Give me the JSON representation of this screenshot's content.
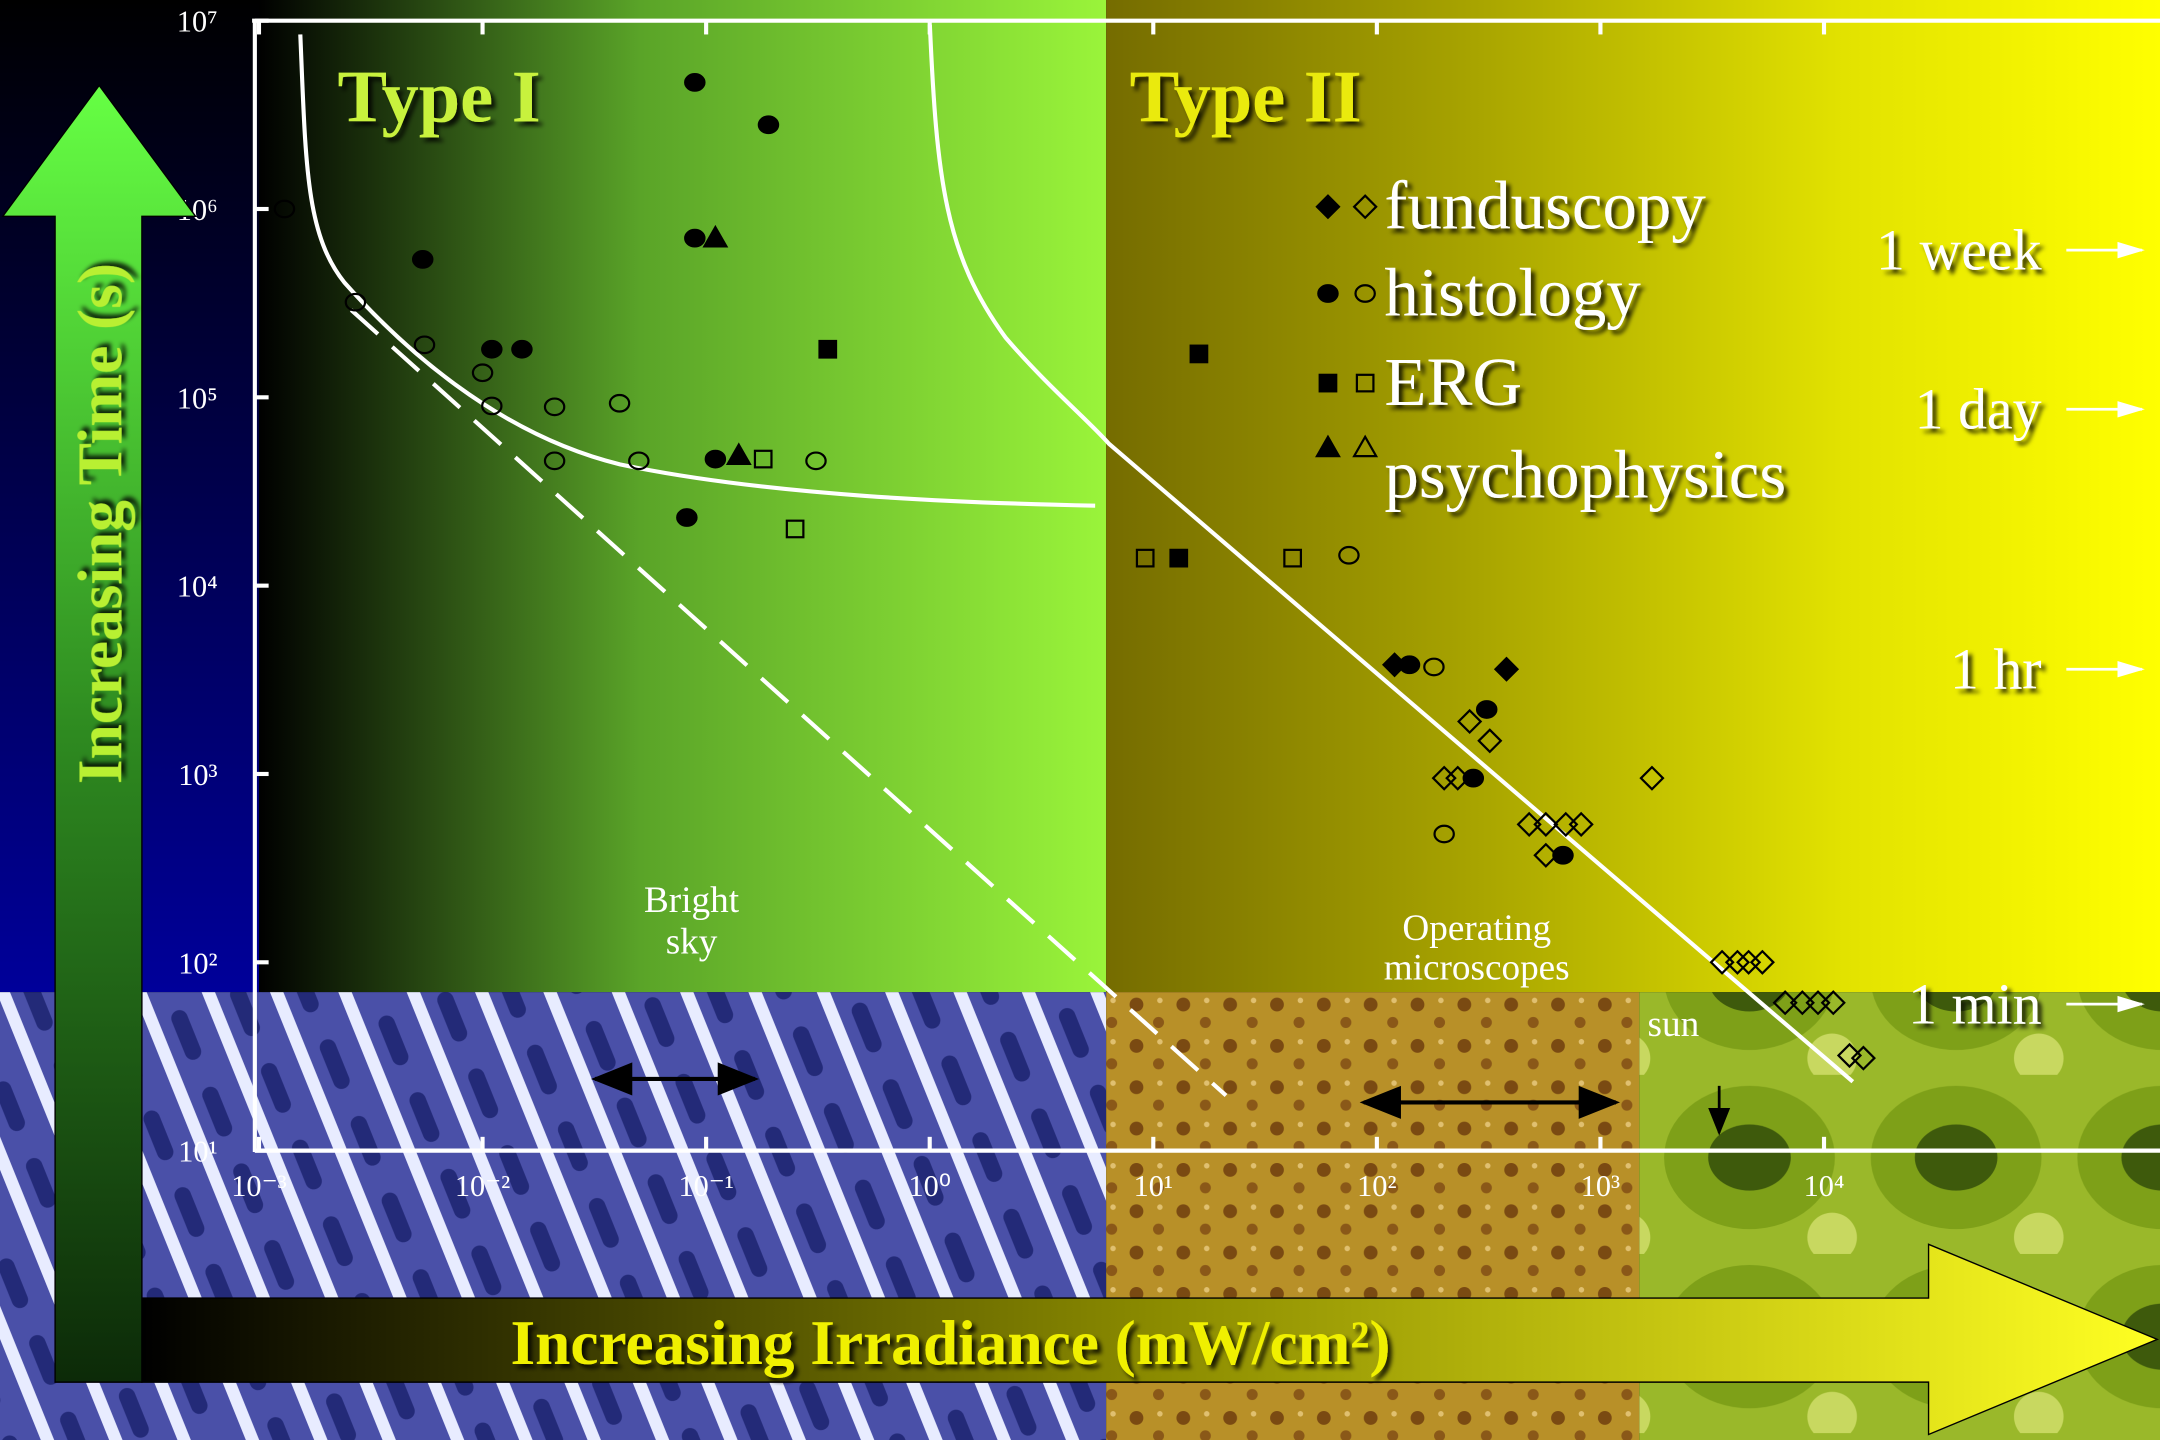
{
  "chart_data": {
    "type": "scatter",
    "xlabel": "Increasing Irradiance (mW/cm²)",
    "ylabel": "Increasing Time (s)",
    "xscale": "log",
    "yscale": "log",
    "xlim": [
      0.001,
      100000
    ],
    "ylim": [
      10,
      10000000
    ],
    "xticks": [
      {
        "value": 0.001,
        "label": "10⁻³"
      },
      {
        "value": 0.01,
        "label": "10⁻²"
      },
      {
        "value": 0.1,
        "label": "10⁻¹"
      },
      {
        "value": 1,
        "label": "10⁰"
      },
      {
        "value": 10,
        "label": "10¹"
      },
      {
        "value": 100,
        "label": "10²"
      },
      {
        "value": 1000,
        "label": "10³"
      },
      {
        "value": 10000,
        "label": "10⁴"
      }
    ],
    "yticks": [
      {
        "value": 10,
        "label": "10¹"
      },
      {
        "value": 100,
        "label": "10²"
      },
      {
        "value": 1000,
        "label": "10³"
      },
      {
        "value": 10000,
        "label": "10⁴"
      },
      {
        "value": 100000,
        "label": "10⁵"
      },
      {
        "value": 1000000,
        "label": "10⁶"
      },
      {
        "value": 10000000,
        "label": "10⁷"
      }
    ],
    "regions": {
      "type_1": "Type I",
      "type_2": "Type II"
    },
    "annotations": {
      "bright_sky": [
        "Bright",
        "sky"
      ],
      "operating_microscopes": [
        "Operating",
        "microscopes"
      ],
      "sun": "sun"
    },
    "time_marks": [
      {
        "label": "1 week",
        "value": 604800
      },
      {
        "label": "1 day",
        "value": 86400
      },
      {
        "label": "1 hr",
        "value": 3600
      },
      {
        "label": "1 min",
        "value": 60
      }
    ],
    "series": [
      {
        "name": "funduscopy",
        "marker": "diamond",
        "color": "#000000",
        "x": [
          120,
          380,
          260,
          320,
          200,
          230,
          1700,
          480,
          570,
          700,
          820,
          570,
          3500,
          4100,
          4600,
          5300,
          6700,
          8000,
          9400,
          11000,
          13000,
          15000
        ],
        "y": [
          3800,
          3600,
          1900,
          1500,
          950,
          950,
          950,
          540,
          540,
          540,
          540,
          370,
          100,
          100,
          100,
          100,
          61,
          61,
          61,
          61,
          32,
          31
        ],
        "filled": [
          true,
          true,
          false,
          false,
          false,
          false,
          false,
          false,
          false,
          false,
          false,
          false,
          false,
          false,
          false,
          false,
          false,
          false,
          false,
          false,
          false,
          false
        ]
      },
      {
        "name": "histology",
        "marker": "circle",
        "color": "#000000",
        "x": [
          0.089,
          0.19,
          0.0054,
          0.089,
          0.011,
          0.015,
          0.11,
          0.082,
          140,
          310,
          270,
          680,
          0.0013,
          0.0027,
          0.0055,
          0.01,
          0.011,
          0.021,
          0.041,
          0.021,
          0.05,
          0.31,
          75,
          180,
          200
        ],
        "y": [
          4700000,
          2800000,
          540000,
          700000,
          180000,
          180000,
          47000,
          23000,
          3800,
          2200,
          950,
          370,
          1000000,
          320000,
          190000,
          135000,
          90000,
          89000,
          93000,
          46000,
          46000,
          46000,
          14500,
          3700,
          480
        ],
        "filled": [
          true,
          true,
          true,
          true,
          true,
          true,
          true,
          true,
          true,
          true,
          true,
          true,
          false,
          false,
          false,
          false,
          false,
          false,
          false,
          false,
          false,
          false,
          false,
          false,
          false
        ]
      },
      {
        "name": "ERG",
        "marker": "square",
        "color": "#000000",
        "x": [
          0.35,
          16,
          13,
          0.18,
          0.25,
          9.2,
          42
        ],
        "y": [
          180000,
          170000,
          14000,
          47000,
          20000,
          14000,
          14000
        ],
        "filled": [
          true,
          true,
          true,
          false,
          false,
          false,
          false
        ]
      },
      {
        "name": "psychophysics",
        "marker": "triangle",
        "color": "#000000",
        "x": [
          0.11,
          0.14
        ],
        "y": [
          700000,
          49000
        ],
        "filled": [
          true,
          true
        ]
      }
    ]
  }
}
